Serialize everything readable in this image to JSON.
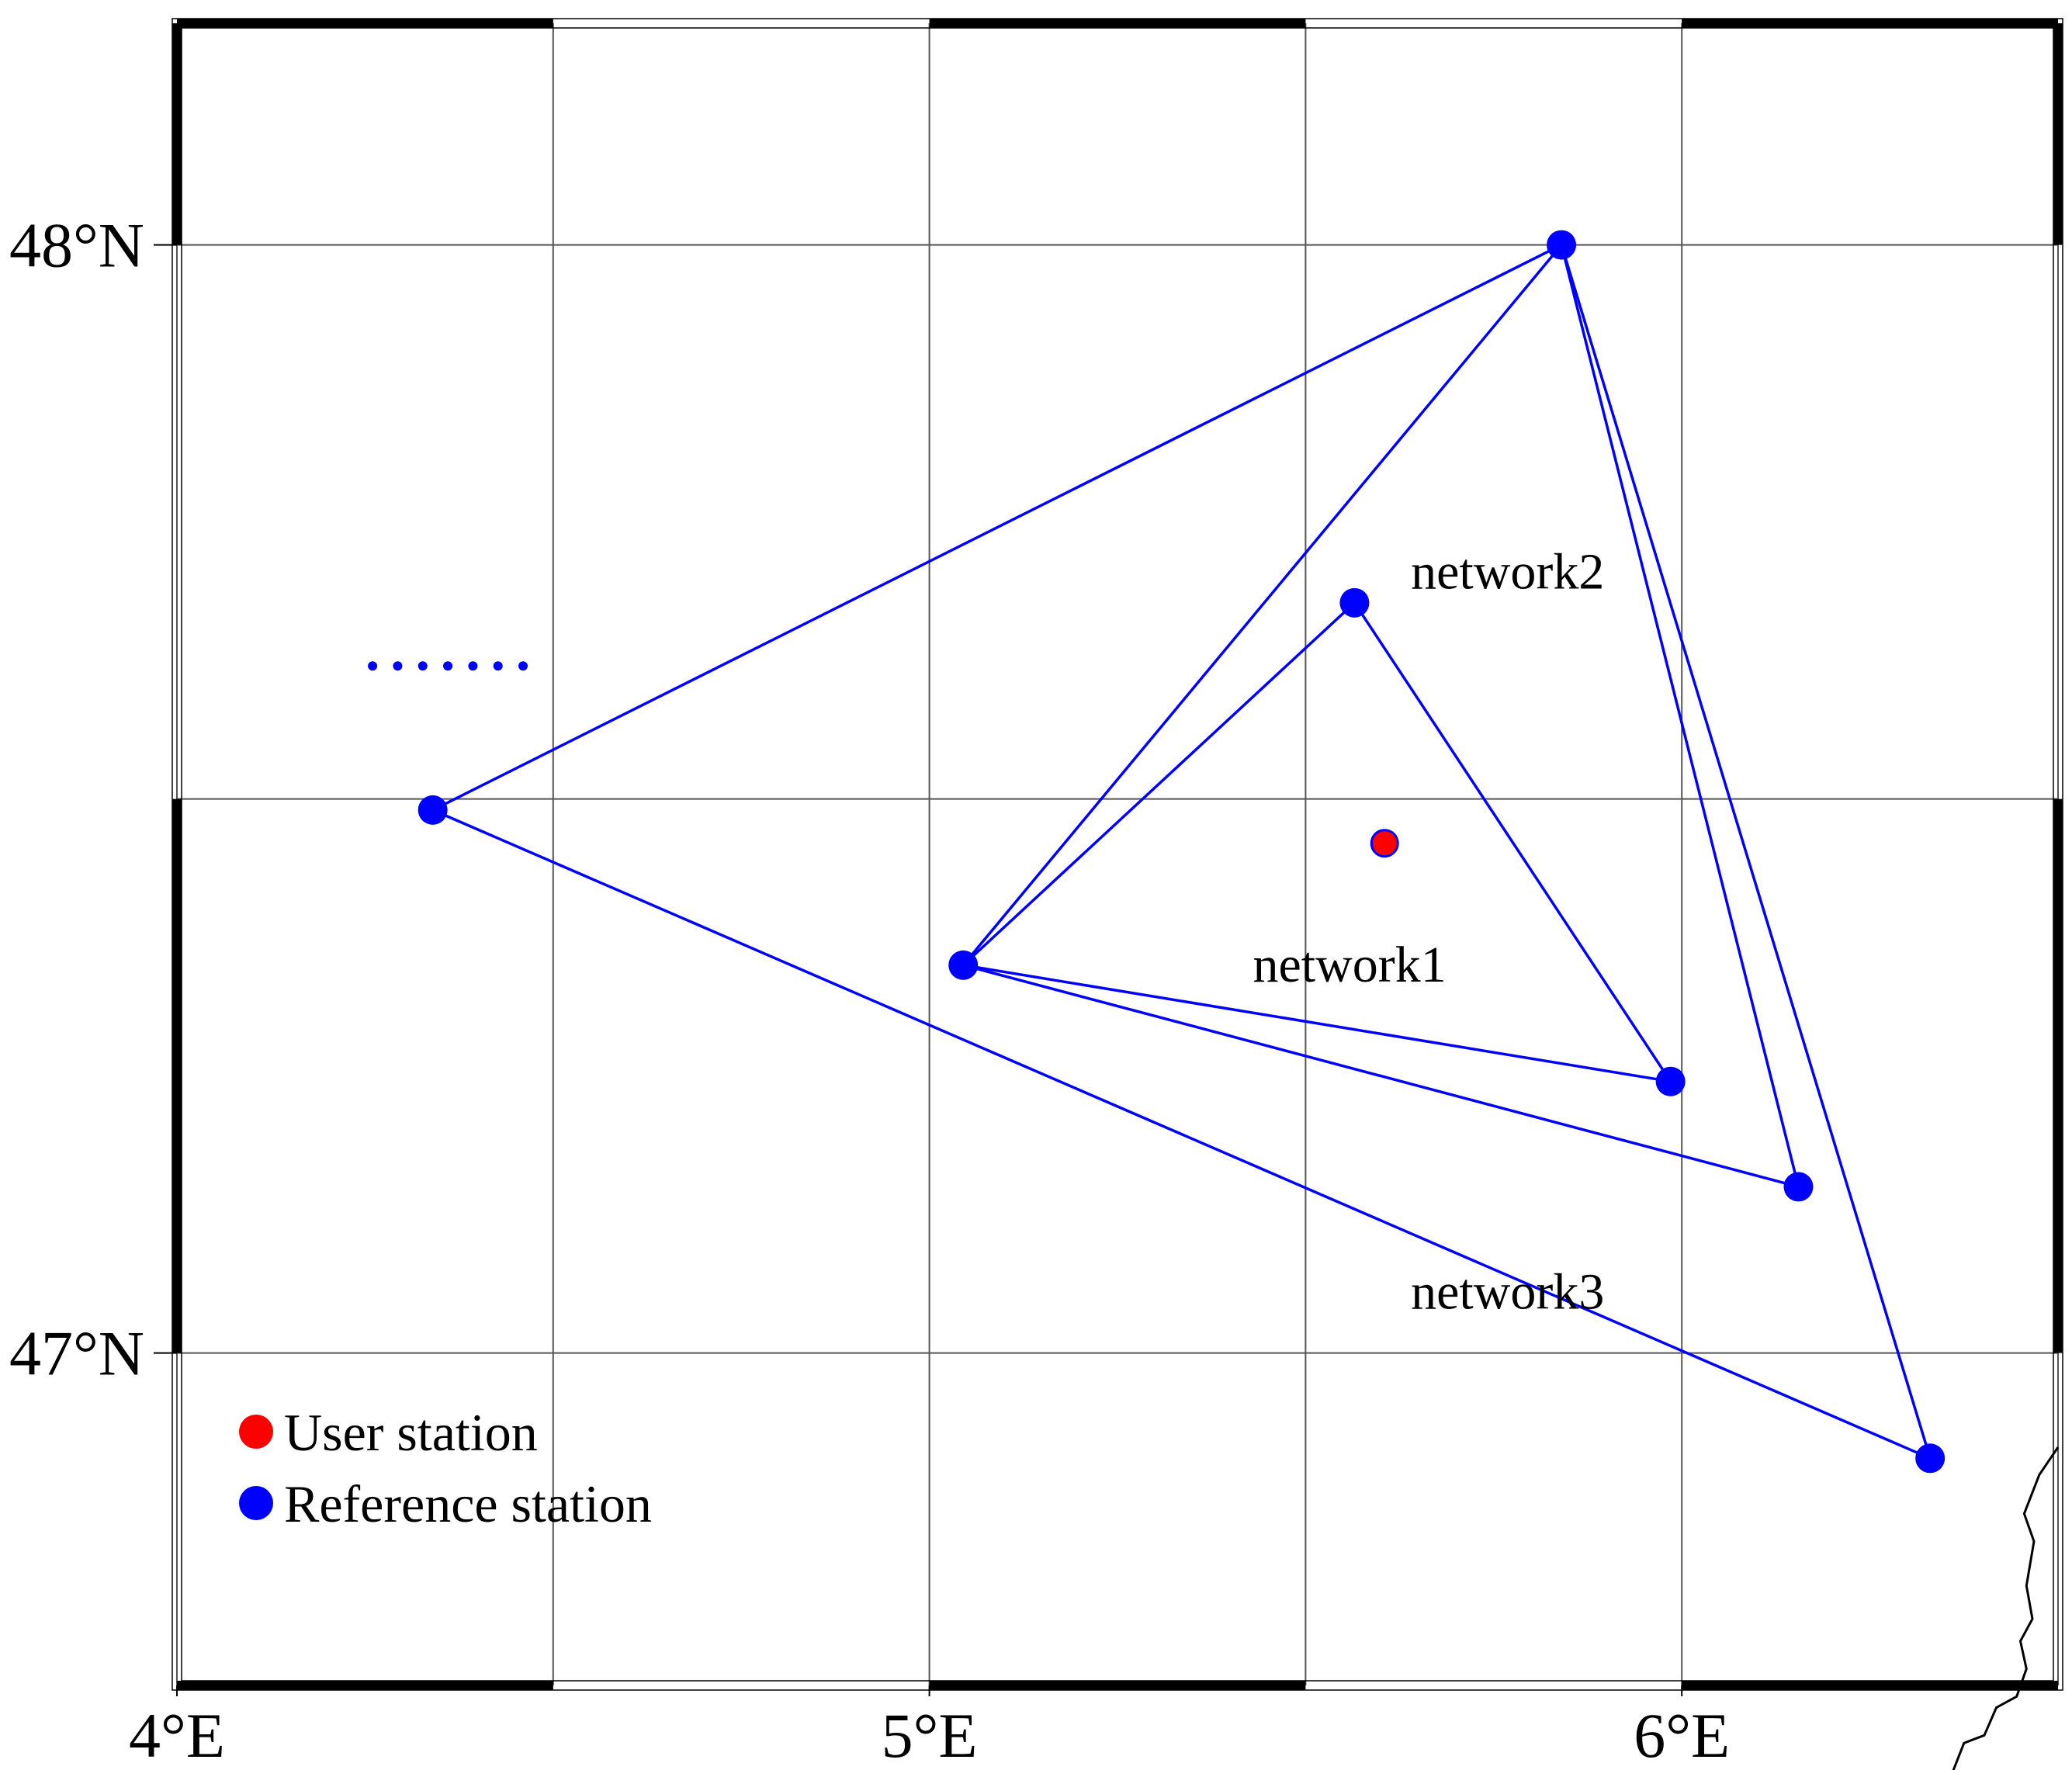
{
  "map": {
    "lon_range": [
      4.0,
      6.5
    ],
    "lat_range": [
      46.7,
      48.2
    ],
    "grid_lon_step": 0.5,
    "grid_lat_step": 0.5,
    "x_ticks": [
      {
        "value": 4,
        "label": "4°E"
      },
      {
        "value": 5,
        "label": "5°E"
      },
      {
        "value": 6,
        "label": "6°E"
      }
    ],
    "y_ticks": [
      {
        "value": 48,
        "label": "48°N"
      },
      {
        "value": 47,
        "label": "47°N"
      }
    ],
    "colors": {
      "reference": "#0000ff",
      "user": "#ff0000",
      "lines": "#0000ff",
      "grid": "#555555",
      "coast": "#000000"
    }
  },
  "stations": {
    "user": {
      "lon": 5.605,
      "lat": 47.46
    },
    "reference": [
      {
        "id": "A",
        "lon": 5.84,
        "lat": 48.0
      },
      {
        "id": "B",
        "lon": 5.565,
        "lat": 47.677
      },
      {
        "id": "C",
        "lon": 4.34,
        "lat": 47.49
      },
      {
        "id": "D",
        "lon": 5.045,
        "lat": 47.35
      },
      {
        "id": "E",
        "lon": 5.985,
        "lat": 47.245
      },
      {
        "id": "F",
        "lon": 6.155,
        "lat": 47.15
      },
      {
        "id": "G",
        "lon": 6.33,
        "lat": 46.905
      }
    ]
  },
  "networks": [
    {
      "name": "network1",
      "vertices": [
        "D",
        "B",
        "E"
      ],
      "label_lon": 5.43,
      "label_lat": 47.335
    },
    {
      "name": "network2",
      "vertices": [
        "D",
        "A",
        "F"
      ],
      "label_lon": 5.64,
      "label_lat": 47.69
    },
    {
      "name": "network3",
      "vertices": [
        "C",
        "A",
        "G"
      ],
      "label_lon": 5.64,
      "label_lat": 47.04
    }
  ],
  "legend": {
    "items": [
      {
        "label": "User station",
        "color": "#ff0000"
      },
      {
        "label": "Reference station",
        "color": "#0000ff"
      }
    ]
  },
  "coastline": [
    [
      6.5,
      46.915
    ],
    [
      6.475,
      46.89
    ],
    [
      6.455,
      46.855
    ],
    [
      6.468,
      46.83
    ],
    [
      6.458,
      46.79
    ],
    [
      6.466,
      46.76
    ],
    [
      6.45,
      46.74
    ],
    [
      6.458,
      46.715
    ],
    [
      6.445,
      46.69
    ],
    [
      6.418,
      46.68
    ],
    [
      6.402,
      46.655
    ],
    [
      6.375,
      46.648
    ],
    [
      6.36,
      46.622
    ],
    [
      6.34,
      46.605
    ],
    [
      6.3,
      46.6
    ]
  ],
  "dotted_mark": {
    "lon_start": 4.26,
    "lon_end": 4.46,
    "lat": 47.62,
    "dots": 7
  }
}
